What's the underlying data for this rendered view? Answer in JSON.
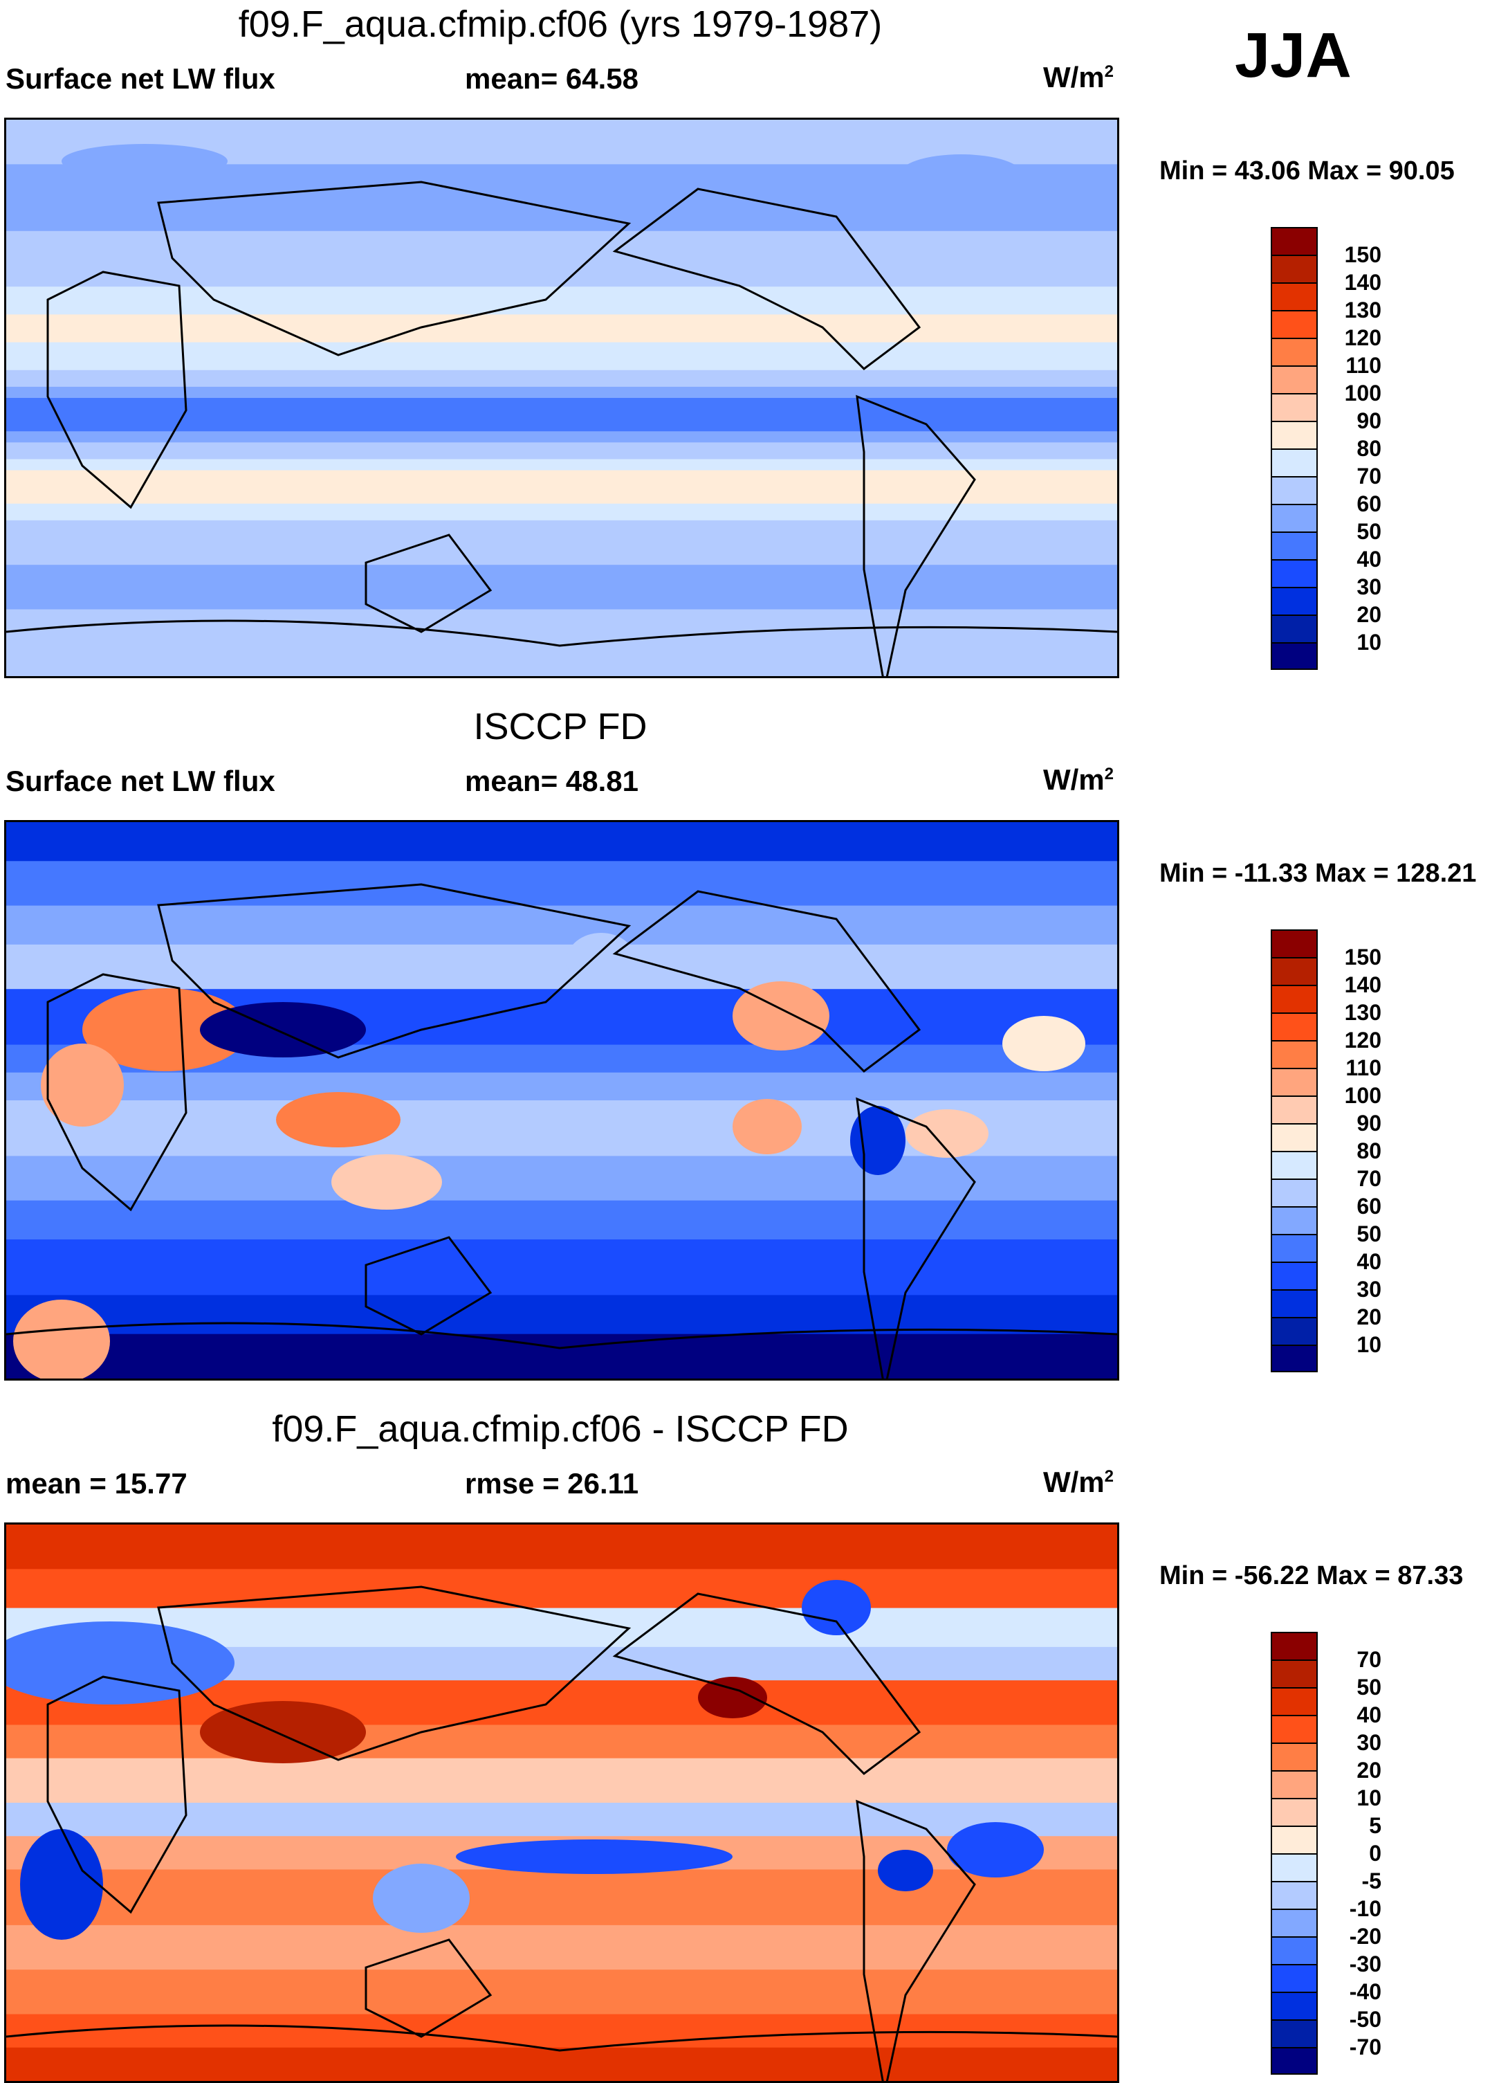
{
  "season": "JJA",
  "colors": [
    "#000080",
    "#0020a8",
    "#0030e0",
    "#1a4cff",
    "#4578ff",
    "#82a8ff",
    "#b3cbff",
    "#d6e9ff",
    "#ffecd9",
    "#ffcbb2",
    "#ffa57e",
    "#ff7e45",
    "#ff5119",
    "#e23200",
    "#b52000",
    "#8b0000"
  ],
  "chart_data": [
    {
      "type": "heatmap",
      "title": "f09.F_aqua.cfmip.cf06 (yrs 1979-1987)",
      "variable": "Surface net LW flux",
      "stat_label": "mean=",
      "stat_value": "64.58",
      "units": "W/m",
      "units_sup": "2",
      "min_max": "Min =  43.06 Max =  90.05",
      "levels": [
        "150",
        "140",
        "130",
        "120",
        "110",
        "100",
        "90",
        "80",
        "70",
        "60",
        "50",
        "40",
        "30",
        "20",
        "10"
      ]
    },
    {
      "type": "heatmap",
      "title": "ISCCP FD",
      "variable": "Surface net LW flux",
      "stat_label": "mean=",
      "stat_value": "48.81",
      "units": "W/m",
      "units_sup": "2",
      "min_max": "Min = -11.33 Max = 128.21",
      "levels": [
        "150",
        "140",
        "130",
        "120",
        "110",
        "100",
        "90",
        "80",
        "70",
        "60",
        "50",
        "40",
        "30",
        "20",
        "10"
      ]
    },
    {
      "type": "heatmap",
      "title": "f09.F_aqua.cfmip.cf06 - ISCCP FD",
      "variable": "mean =  15.77",
      "stat_label": "rmse =",
      "stat_value": "26.11",
      "units": "W/m",
      "units_sup": "2",
      "min_max": "Min = -56.22 Max =  87.33",
      "levels": [
        "70",
        "50",
        "40",
        "30",
        "20",
        "10",
        "5",
        "0",
        "-5",
        "-10",
        "-20",
        "-30",
        "-40",
        "-50",
        "-70"
      ]
    }
  ]
}
